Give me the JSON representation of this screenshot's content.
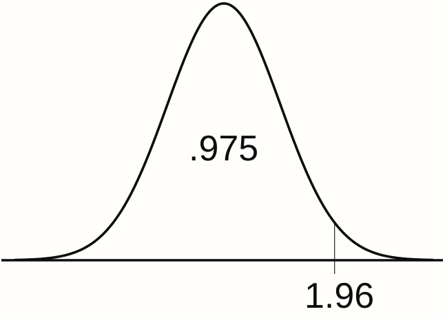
{
  "figure": {
    "background_color": "#fffefb",
    "ink_color": "#0d0d0d"
  },
  "chart_data": {
    "type": "line",
    "title": "",
    "description": "Bell-shaped standard normal density curve drawn above a horizontal axis; the region to the left of the marked point holds probability .975",
    "series": [
      {
        "name": "standard-normal-pdf",
        "distribution": "normal",
        "mean": 0,
        "sd": 1
      }
    ],
    "annotations": {
      "area_label": {
        "text": ".975",
        "value": 0.975,
        "position": "inside-curve-center"
      },
      "critical_value": {
        "label": "1.96",
        "z": 1.96,
        "marker": "thin-vertical-line-through-axis"
      }
    },
    "x_axis": {
      "line": true,
      "tick_labels": [
        "1.96"
      ]
    },
    "y_axis": {
      "line": false
    },
    "grid": false,
    "legend": false
  }
}
